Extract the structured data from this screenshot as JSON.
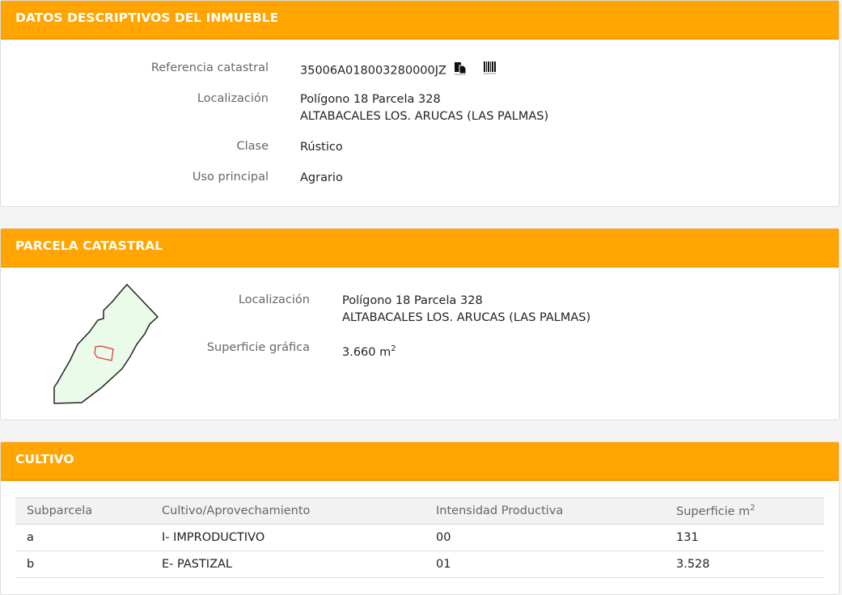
{
  "datos": {
    "title": "DATOS DESCRIPTIVOS DEL INMUEBLE",
    "ref_label": "Referencia catastral",
    "ref_value": "35006A018003280000JZ",
    "loc_label": "Localización",
    "loc_line1": "Polígono 18 Parcela 328",
    "loc_line2": "ALTABACALES LOS. ARUCAS (LAS PALMAS)",
    "clase_label": "Clase",
    "clase_value": "Rústico",
    "uso_label": "Uso principal",
    "uso_value": "Agrario"
  },
  "parcela": {
    "title": "PARCELA CATASTRAL",
    "loc_label": "Localización",
    "loc_line1": "Polígono 18 Parcela 328",
    "loc_line2": "ALTABACALES LOS. ARUCAS (LAS PALMAS)",
    "sup_label": "Superficie gráfica",
    "sup_value": "3.660 m",
    "sup_unit_exp": "2"
  },
  "cultivo": {
    "title": "CULTIVO",
    "headers": [
      "Subparcela",
      "Cultivo/Aprovechamiento",
      "Intensidad Productiva",
      "Superficie m"
    ],
    "header_exp": "2",
    "rows": [
      [
        "a",
        "I- IMPRODUCTIVO",
        "00",
        "131"
      ],
      [
        "b",
        "E- PASTIZAL",
        "01",
        "3.528"
      ]
    ]
  },
  "colors": {
    "accent": "#ffa400"
  }
}
